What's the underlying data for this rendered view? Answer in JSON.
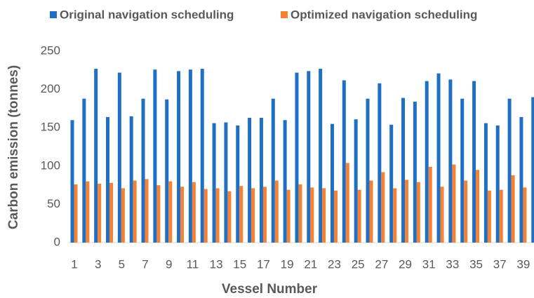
{
  "chart_data": {
    "type": "bar",
    "categories": [
      "1",
      null,
      "3",
      null,
      "5",
      null,
      "7",
      null,
      "9",
      null,
      "11",
      null,
      "13",
      null,
      "15",
      null,
      "17",
      null,
      "19",
      null,
      "21",
      null,
      "23",
      null,
      "25",
      null,
      "27",
      null,
      "29",
      null,
      "31",
      null,
      "33",
      null,
      "35",
      null,
      "37",
      null,
      "39",
      null
    ],
    "series": [
      {
        "name": "Original navigation scheduling",
        "color": "#1f6fc5",
        "values": [
          160,
          188,
          227,
          164,
          222,
          165,
          188,
          226,
          187,
          224,
          226,
          227,
          156,
          157,
          153,
          163,
          163,
          188,
          160,
          222,
          224,
          227,
          155,
          212,
          161,
          188,
          208,
          154,
          189,
          184,
          211,
          221,
          213,
          188,
          211,
          156,
          153,
          188,
          164,
          190
        ]
      },
      {
        "name": "Optimized navigation scheduling",
        "color": "#f58233",
        "values": [
          76,
          80,
          77,
          78,
          71,
          81,
          83,
          75,
          80,
          73,
          79,
          70,
          71,
          67,
          74,
          71,
          73,
          81,
          69,
          76,
          72,
          71,
          68,
          104,
          69,
          81,
          92,
          71,
          82,
          79,
          99,
          73,
          102,
          81,
          95,
          68,
          69,
          88,
          72,
          null
        ]
      }
    ],
    "x_label": "Vessel Number",
    "y_label": "Carbon emission (tonnes)",
    "ylim": [
      0,
      250
    ],
    "yticks": [
      0,
      50,
      100,
      150,
      200,
      250
    ],
    "grid": false,
    "legend": "top"
  }
}
